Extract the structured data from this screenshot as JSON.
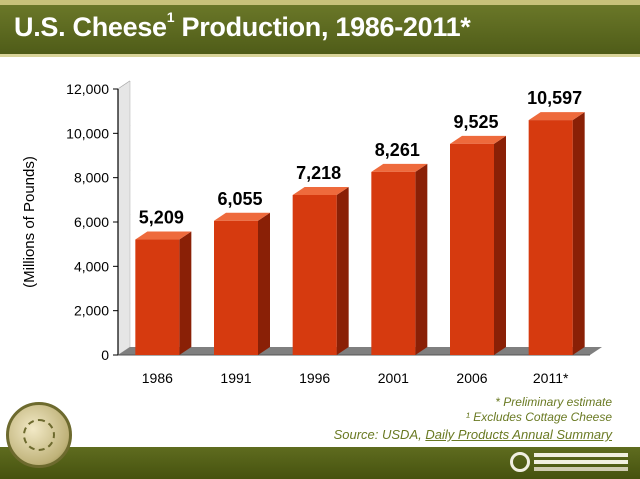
{
  "header": {
    "title_pre": "U.S. Cheese",
    "title_sup": "1",
    "title_post": " Production, 1986-2011*"
  },
  "chart_data": {
    "type": "bar",
    "categories": [
      "1986",
      "1991",
      "1996",
      "2001",
      "2006",
      "2011*"
    ],
    "values": [
      5209,
      6055,
      7218,
      8261,
      9525,
      10597
    ],
    "value_labels": [
      "5,209",
      "6,055",
      "7,218",
      "8,261",
      "9,525",
      "10,597"
    ],
    "ylabel": "(Millions of Pounds)",
    "ylim": [
      0,
      12000
    ],
    "yticks": [
      0,
      2000,
      4000,
      6000,
      8000,
      10000,
      12000
    ],
    "ytick_labels": [
      "0",
      "2,000",
      "4,000",
      "6,000",
      "8,000",
      "10,000",
      "12,000"
    ],
    "colors": {
      "bar_front": "#d63a0f",
      "bar_side": "#8a2006",
      "bar_top": "#ee6a3c",
      "floor": "#7f7f7f"
    }
  },
  "notes": {
    "prelim": "* Preliminary estimate",
    "excludes": "¹ Excludes Cottage Cheese"
  },
  "source": {
    "prefix": "Source: USDA, ",
    "title": "Daily Products Annual Summary"
  }
}
